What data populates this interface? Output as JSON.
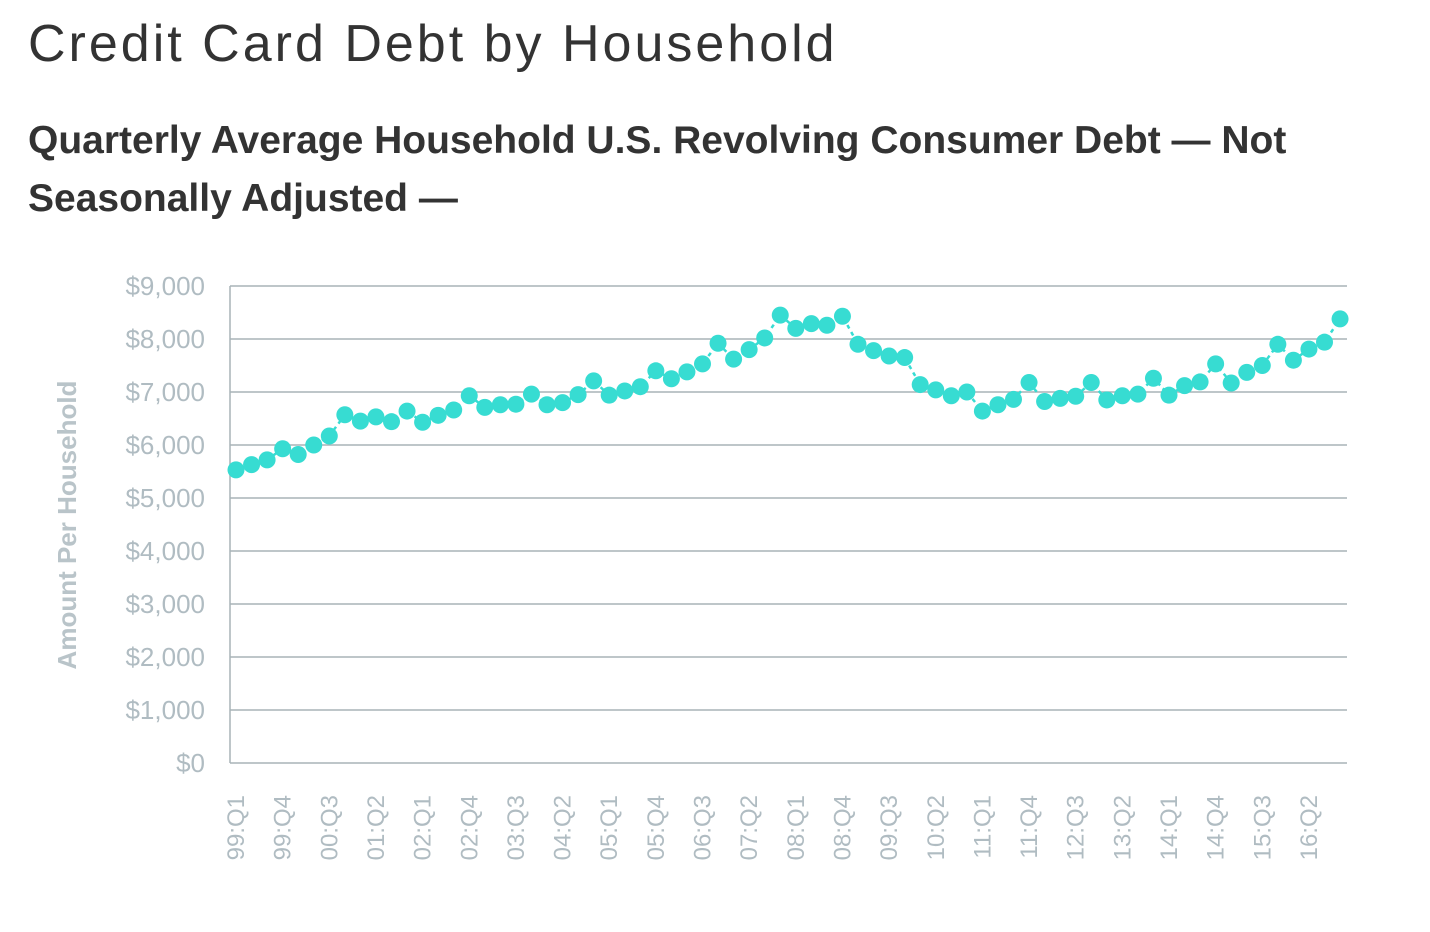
{
  "header": {
    "title": "Credit Card Debt by Household"
  },
  "chart_data": {
    "type": "line",
    "title": "Credit Card Debt by Household",
    "subtitle": "Quarterly Average Household U.S. Revolving Consumer Debt — Not Seasonally Adjusted —",
    "xlabel": "",
    "ylabel": "Amount Per Household",
    "ylim": [
      0,
      9000
    ],
    "y_ticks": [
      "$0",
      "$1,000",
      "$2,000",
      "$3,000",
      "$4,000",
      "$5,000",
      "$6,000",
      "$7,000",
      "$8,000",
      "$9,000"
    ],
    "x_tick_labels": [
      {
        "label": "99:Q1",
        "index": 0
      },
      {
        "label": "99:Q4",
        "index": 3
      },
      {
        "label": "00:Q3",
        "index": 6
      },
      {
        "label": "01:Q2",
        "index": 9
      },
      {
        "label": "02:Q1",
        "index": 12
      },
      {
        "label": "02:Q4",
        "index": 15
      },
      {
        "label": "03:Q3",
        "index": 18
      },
      {
        "label": "04:Q2",
        "index": 21
      },
      {
        "label": "05:Q1",
        "index": 24
      },
      {
        "label": "05:Q4",
        "index": 27
      },
      {
        "label": "06:Q3",
        "index": 30
      },
      {
        "label": "07:Q2",
        "index": 33
      },
      {
        "label": "08:Q1",
        "index": 36
      },
      {
        "label": "08:Q4",
        "index": 39
      },
      {
        "label": "09:Q3",
        "index": 42
      },
      {
        "label": "10:Q2",
        "index": 45
      },
      {
        "label": "11:Q1",
        "index": 48
      },
      {
        "label": "11:Q4",
        "index": 51
      },
      {
        "label": "12:Q3",
        "index": 54
      },
      {
        "label": "13:Q2",
        "index": 57
      },
      {
        "label": "14:Q1",
        "index": 60
      },
      {
        "label": "14:Q4",
        "index": 63
      },
      {
        "label": "15:Q3",
        "index": 66
      },
      {
        "label": "16:Q2",
        "index": 69
      }
    ],
    "categories": [
      "99:Q1",
      "99:Q2",
      "99:Q3",
      "99:Q4",
      "00:Q1",
      "00:Q2",
      "00:Q3",
      "00:Q4",
      "01:Q1",
      "01:Q2",
      "01:Q3",
      "01:Q4",
      "02:Q1",
      "02:Q2",
      "02:Q3",
      "02:Q4",
      "03:Q1",
      "03:Q2",
      "03:Q3",
      "03:Q4",
      "04:Q1",
      "04:Q2",
      "04:Q3",
      "04:Q4",
      "05:Q1",
      "05:Q2",
      "05:Q3",
      "05:Q4",
      "06:Q1",
      "06:Q2",
      "06:Q3",
      "06:Q4",
      "07:Q1",
      "07:Q2",
      "07:Q3",
      "07:Q4",
      "08:Q1",
      "08:Q2",
      "08:Q3",
      "08:Q4",
      "09:Q1",
      "09:Q2",
      "09:Q3",
      "09:Q4",
      "10:Q1",
      "10:Q2",
      "10:Q3",
      "10:Q4",
      "11:Q1",
      "11:Q2",
      "11:Q3",
      "11:Q4",
      "12:Q1",
      "12:Q2",
      "12:Q3",
      "12:Q4",
      "13:Q1",
      "13:Q2",
      "13:Q3",
      "13:Q4",
      "14:Q1",
      "14:Q2",
      "14:Q3",
      "14:Q4",
      "15:Q1",
      "15:Q2",
      "15:Q3",
      "15:Q4",
      "16:Q1",
      "16:Q2",
      "16:Q3",
      "16:Q4"
    ],
    "values": [
      5530,
      5630,
      5720,
      5930,
      5820,
      6000,
      6170,
      6570,
      6450,
      6530,
      6440,
      6640,
      6430,
      6560,
      6660,
      6930,
      6710,
      6760,
      6770,
      6960,
      6760,
      6800,
      6950,
      7210,
      6940,
      7020,
      7100,
      7400,
      7250,
      7380,
      7530,
      7920,
      7620,
      7800,
      8020,
      8450,
      8200,
      8290,
      8260,
      8430,
      7900,
      7780,
      7680,
      7650,
      7140,
      7040,
      6930,
      7000,
      6640,
      6760,
      6860,
      7180,
      6820,
      6880,
      6920,
      7180,
      6850,
      6930,
      6960,
      7260,
      6940,
      7120,
      7190,
      7530,
      7170,
      7370,
      7500,
      7900,
      7600,
      7810,
      7940,
      8380
    ],
    "colors": {
      "series": "#37dcd2",
      "grid": "#a8b3b7",
      "tick_text": "#b0bcc2",
      "title_text": "#333333"
    },
    "grid": true,
    "legend": "none"
  }
}
